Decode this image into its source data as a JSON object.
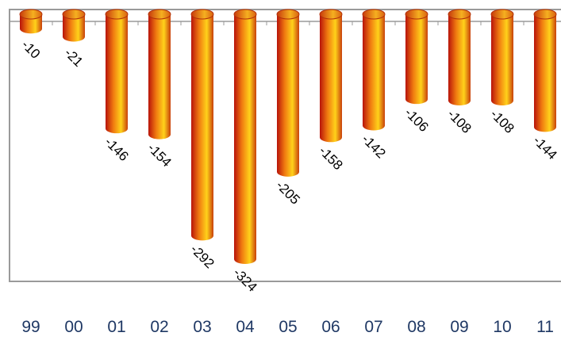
{
  "chart_data": {
    "type": "bar",
    "style": "3d-cylinder",
    "categories": [
      "99",
      "00",
      "01",
      "02",
      "03",
      "04",
      "05",
      "06",
      "07",
      "08",
      "09",
      "10",
      "11"
    ],
    "values": [
      -10,
      -21,
      -146,
      -154,
      -292,
      -324,
      -205,
      -158,
      -142,
      -106,
      -108,
      -108,
      -144
    ],
    "data_labels": [
      "-10",
      "-21",
      "-146",
      "-154",
      "-292",
      "-324",
      "-205",
      "-158",
      "-142",
      "-106",
      "-108",
      "-108",
      "-144"
    ],
    "title": "",
    "xlabel": "",
    "ylabel": "",
    "ylim": [
      -340,
      0
    ],
    "grid": false,
    "legend": "none",
    "colors": {
      "bar_dark": "#b8130a",
      "bar_mid": "#f07a10",
      "bar_light": "#ffd21a",
      "bar_top": "#e8a020",
      "axis": "#9a9a9a",
      "tick_label": "#1f3864",
      "data_label": "#000000"
    }
  }
}
